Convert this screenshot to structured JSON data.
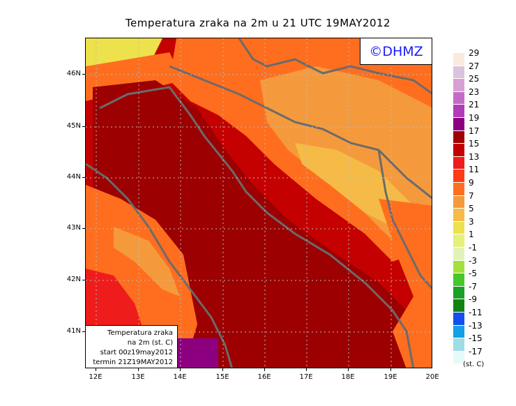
{
  "title": "Temperatura zraka na 2m u 21 UTC 19MAY2012",
  "logo": "©DHMZ",
  "info": {
    "line1": "Temperatura zraka",
    "line2": "na 2m (st. C)",
    "line3": "start 00z19may2012",
    "line4": "termin 21Z19MAY2012"
  },
  "lat_labels": [
    "46N",
    "45N",
    "44N",
    "43N",
    "42N",
    "41N"
  ],
  "lon_labels": [
    "12E",
    "13E",
    "14E",
    "15E",
    "16E",
    "17E",
    "18E",
    "19E",
    "20E"
  ],
  "legend": {
    "unit": "(st. C)",
    "labels": [
      "29",
      "27",
      "25",
      "23",
      "21",
      "19",
      "17",
      "15",
      "13",
      "11",
      "9",
      "7",
      "5",
      "3",
      "1",
      "-1",
      "-3",
      "-5",
      "-7",
      "-9",
      "-11",
      "-13",
      "-15",
      "-17"
    ],
    "colors": [
      "#fbeadc",
      "#dcc2dc",
      "#d7a0d4",
      "#c76ac7",
      "#b23cb7",
      "#8c0080",
      "#a00000",
      "#c40000",
      "#ef1c1c",
      "#ff3c14",
      "#ff6e1e",
      "#f59a3c",
      "#f5bb46",
      "#ede14c",
      "#e6f07a",
      "#e0f4b8",
      "#a4e03c",
      "#46c828",
      "#18a028",
      "#108410",
      "#1450f0",
      "#12a0e6",
      "#a0dce6",
      "#e6fafa"
    ]
  },
  "colors": {
    "sea_dark": "#9c0000",
    "land_red": "#ef1c1c",
    "land_orange": "#ff6e1e",
    "land_lightorange": "#f59a3c",
    "land_yellow": "#ede14c",
    "purple": "#8c0080",
    "coast": "#6b6b6b"
  }
}
